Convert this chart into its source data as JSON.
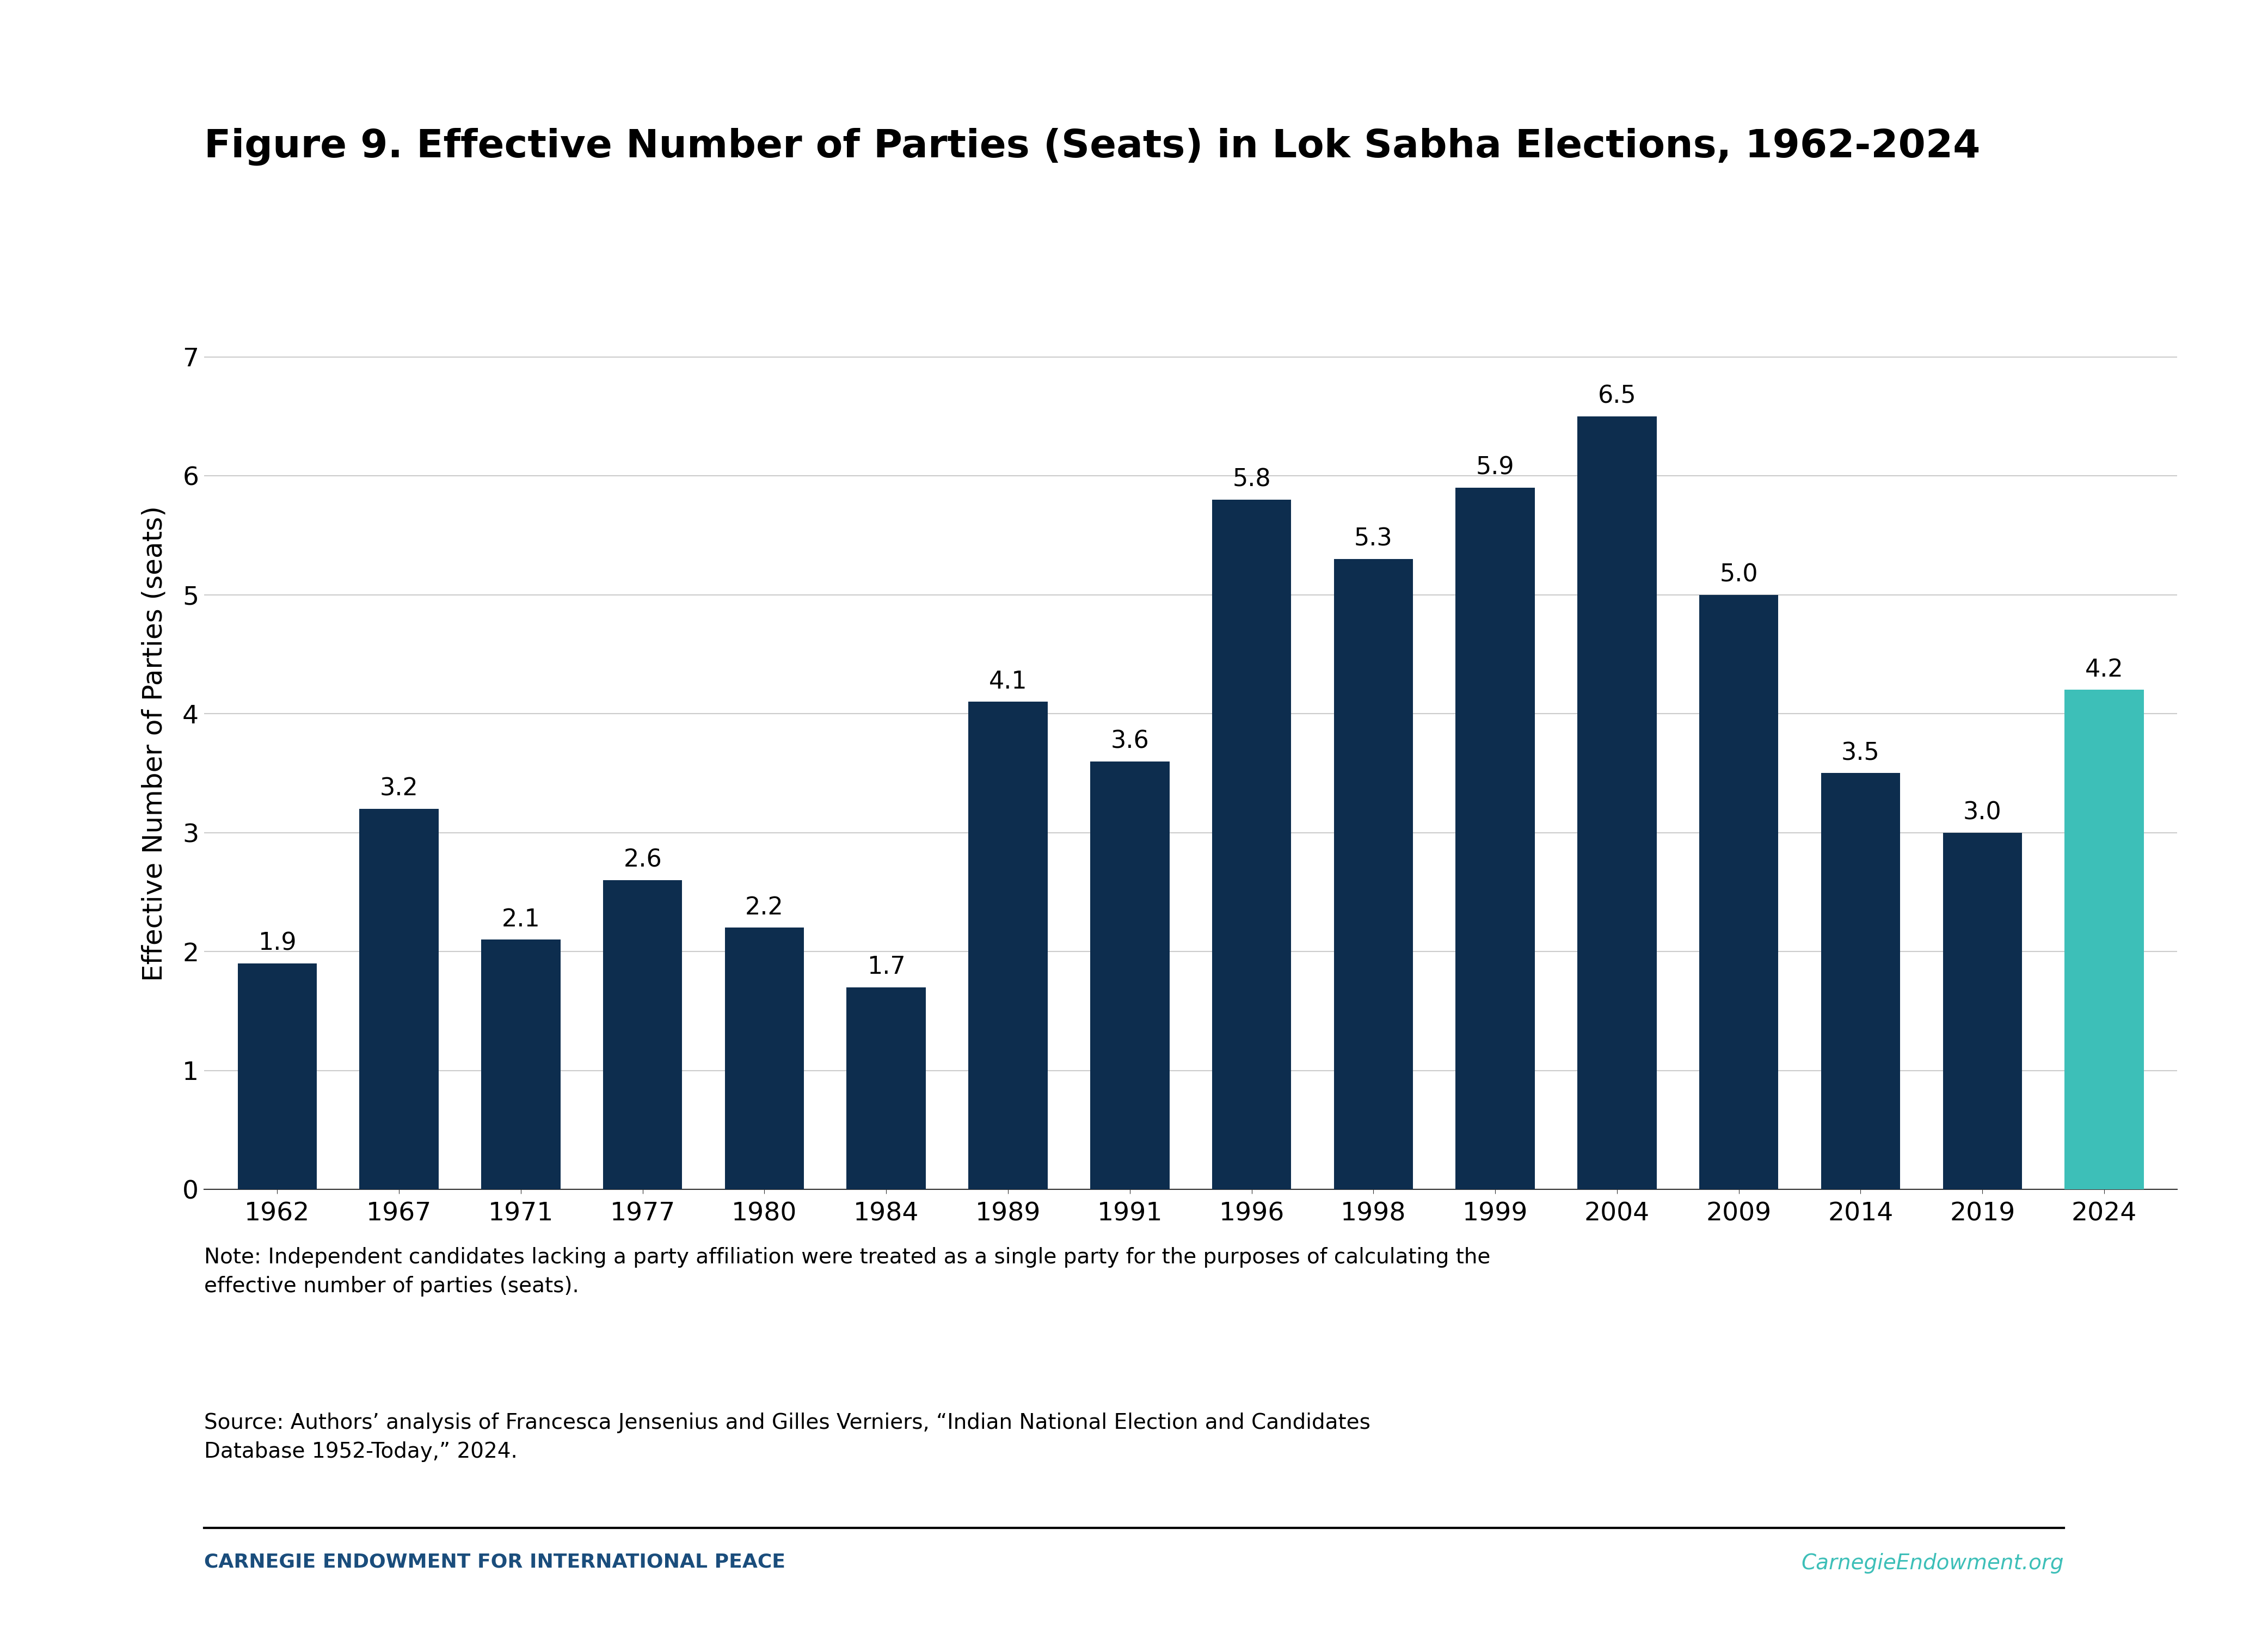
{
  "title": "Figure 9. Effective Number of Parties (Seats) in Lok Sabha Elections, 1962-2024",
  "ylabel": "Effective Number of Parties (seats)",
  "categories": [
    "1962",
    "1967",
    "1971",
    "1977",
    "1980",
    "1984",
    "1989",
    "1991",
    "1996",
    "1998",
    "1999",
    "2004",
    "2009",
    "2014",
    "2019",
    "2024"
  ],
  "values": [
    1.9,
    3.2,
    2.1,
    2.6,
    2.2,
    1.7,
    4.1,
    3.6,
    5.8,
    5.3,
    5.9,
    6.5,
    5.0,
    3.5,
    3.0,
    4.2
  ],
  "bar_colors": [
    "#0d2d4e",
    "#0d2d4e",
    "#0d2d4e",
    "#0d2d4e",
    "#0d2d4e",
    "#0d2d4e",
    "#0d2d4e",
    "#0d2d4e",
    "#0d2d4e",
    "#0d2d4e",
    "#0d2d4e",
    "#0d2d4e",
    "#0d2d4e",
    "#0d2d4e",
    "#0d2d4e",
    "#3dbfb8"
  ],
  "ylim": [
    0,
    7.5
  ],
  "yticks": [
    0,
    1,
    2,
    3,
    4,
    5,
    6,
    7
  ],
  "background_color": "#ffffff",
  "title_fontsize": 52,
  "label_fontsize": 36,
  "tick_fontsize": 34,
  "bar_label_fontsize": 32,
  "note_text": "Note: Independent candidates lacking a party affiliation were treated as a single party for the purposes of calculating the\neffective number of parties (seats).",
  "source_text": "Source: Authors’ analysis of Francesca Jensenius and Gilles Verniers, “Indian National Election and Candidates\nDatabase 1952-Today,” 2024.",
  "footer_left": "CARNEGIE ENDOWMENT FOR INTERNATIONAL PEACE",
  "footer_right": "CarnegieEndowment.org",
  "footer_color_left": "#1a4d7c",
  "footer_color_right": "#3dbfb8",
  "grid_color": "#cccccc",
  "bar_width": 0.65
}
